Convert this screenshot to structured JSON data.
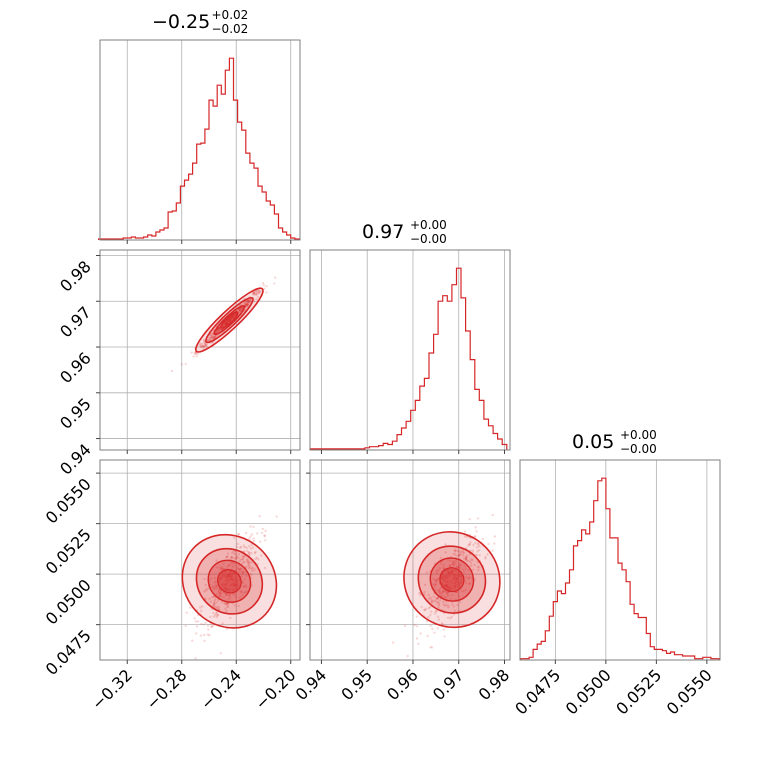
{
  "chart_data": {
    "type": "corner",
    "color": "#d62728",
    "grid": true,
    "titles": [
      {
        "value": "−0.25",
        "plus": "+0.02",
        "minus": "−0.02"
      },
      {
        "value": "0.97",
        "plus": "+0.00",
        "minus": "−0.00"
      },
      {
        "value": "0.05",
        "plus": "+0.00",
        "minus": "−0.00"
      }
    ],
    "params": [
      {
        "range": [
          -0.34,
          -0.1932
        ],
        "ticks": [
          -0.32,
          -0.28,
          -0.24,
          -0.2
        ],
        "tick_labels": [
          "−0.32",
          "−0.28",
          "−0.24",
          "−0.20"
        ]
      },
      {
        "range": [
          0.9375,
          0.9812
        ],
        "ticks": [
          0.94,
          0.95,
          0.96,
          0.97,
          0.98
        ],
        "tick_labels": [
          "0.94",
          "0.95",
          "0.96",
          "0.97",
          "0.98"
        ]
      },
      {
        "range": [
          0.04575,
          0.05565
        ],
        "ticks": [
          0.0475,
          0.05,
          0.0525,
          0.055
        ],
        "tick_labels": [
          "0.0475",
          "0.0500",
          "0.0525",
          "0.0550"
        ]
      }
    ],
    "histograms": [
      {
        "x": [
          -0.3395,
          -0.3365,
          -0.3335,
          -0.3305,
          -0.3275,
          -0.3245,
          -0.3215,
          -0.3185,
          -0.3155,
          -0.3125,
          -0.3095,
          -0.3065,
          -0.3035,
          -0.3005,
          -0.2975,
          -0.2945,
          -0.2915,
          -0.2885,
          -0.2855,
          -0.2825,
          -0.2795,
          -0.2765,
          -0.2735,
          -0.2705,
          -0.2675,
          -0.2645,
          -0.2615,
          -0.2585,
          -0.2555,
          -0.2525,
          -0.2495,
          -0.2465,
          -0.2435,
          -0.2405,
          -0.2375,
          -0.2345,
          -0.2315,
          -0.2285,
          -0.2255,
          -0.2225,
          -0.2195,
          -0.2165,
          -0.2135,
          -0.2105,
          -0.2075,
          -0.2045,
          -0.2015,
          -0.1985,
          -0.1955
        ],
        "counts": [
          1,
          1,
          1,
          1,
          1,
          1,
          2,
          2,
          3,
          2,
          2,
          3,
          5,
          4,
          8,
          10,
          12,
          28,
          29,
          37,
          54,
          60,
          66,
          77,
          96,
          97,
          111,
          140,
          134,
          155,
          146,
          170,
          182,
          140,
          118,
          110,
          87,
          77,
          72,
          54,
          48,
          39,
          35,
          26,
          12,
          8,
          5,
          2,
          1
        ]
      },
      {
        "x": [
          0.938,
          0.939,
          0.94,
          0.941,
          0.942,
          0.943,
          0.944,
          0.945,
          0.946,
          0.947,
          0.948,
          0.949,
          0.95,
          0.951,
          0.952,
          0.953,
          0.954,
          0.955,
          0.956,
          0.957,
          0.958,
          0.959,
          0.96,
          0.961,
          0.962,
          0.963,
          0.964,
          0.965,
          0.966,
          0.967,
          0.968,
          0.969,
          0.97,
          0.971,
          0.972,
          0.973,
          0.974,
          0.975,
          0.976,
          0.977,
          0.978,
          0.979,
          0.98
        ],
        "counts": [
          1,
          1,
          1,
          1,
          1,
          1,
          1,
          1,
          1,
          1,
          1,
          1,
          2,
          3,
          3,
          4,
          6,
          5,
          8,
          14,
          20,
          26,
          36,
          45,
          58,
          65,
          88,
          105,
          135,
          140,
          135,
          150,
          165,
          138,
          108,
          82,
          55,
          45,
          28,
          22,
          15,
          10,
          5
        ]
      },
      {
        "x": [
          0.0459,
          0.0461,
          0.0463,
          0.0465,
          0.0467,
          0.0469,
          0.0471,
          0.0473,
          0.0475,
          0.0477,
          0.0479,
          0.0481,
          0.0483,
          0.0485,
          0.0487,
          0.0489,
          0.0491,
          0.0493,
          0.0495,
          0.0497,
          0.0499,
          0.0501,
          0.0503,
          0.0505,
          0.0507,
          0.0509,
          0.0511,
          0.0513,
          0.0515,
          0.0517,
          0.0519,
          0.0521,
          0.0523,
          0.0525,
          0.0527,
          0.0529,
          0.0531,
          0.0533,
          0.0535,
          0.0537,
          0.0539,
          0.0541,
          0.0543,
          0.0545,
          0.0547,
          0.0549,
          0.0551,
          0.0553,
          0.0555
        ],
        "counts": [
          1,
          1,
          2,
          8,
          12,
          14,
          22,
          33,
          44,
          52,
          50,
          58,
          68,
          86,
          90,
          98,
          95,
          104,
          120,
          135,
          137,
          114,
          92,
          92,
          73,
          68,
          59,
          42,
          35,
          32,
          32,
          20,
          10,
          8,
          8,
          7,
          5,
          6,
          4,
          4,
          3,
          3,
          3,
          1,
          1,
          2,
          2,
          1,
          1
        ]
      }
    ],
    "pairs": [
      {
        "x": 0,
        "y": 1,
        "slope": 0.28125,
        "intercept": 1.0348,
        "spread_x": 0.022,
        "width": 0.00045
      },
      {
        "x": 0,
        "y": 2,
        "slope": 0.0745,
        "intercept": 0.0679,
        "spread_x": 0.02,
        "width": 0.00055
      },
      {
        "x": 1,
        "y": 2,
        "slope": 0.253,
        "intercept": -0.1953,
        "spread_x": 0.0062,
        "width": 0.00055
      }
    ]
  }
}
